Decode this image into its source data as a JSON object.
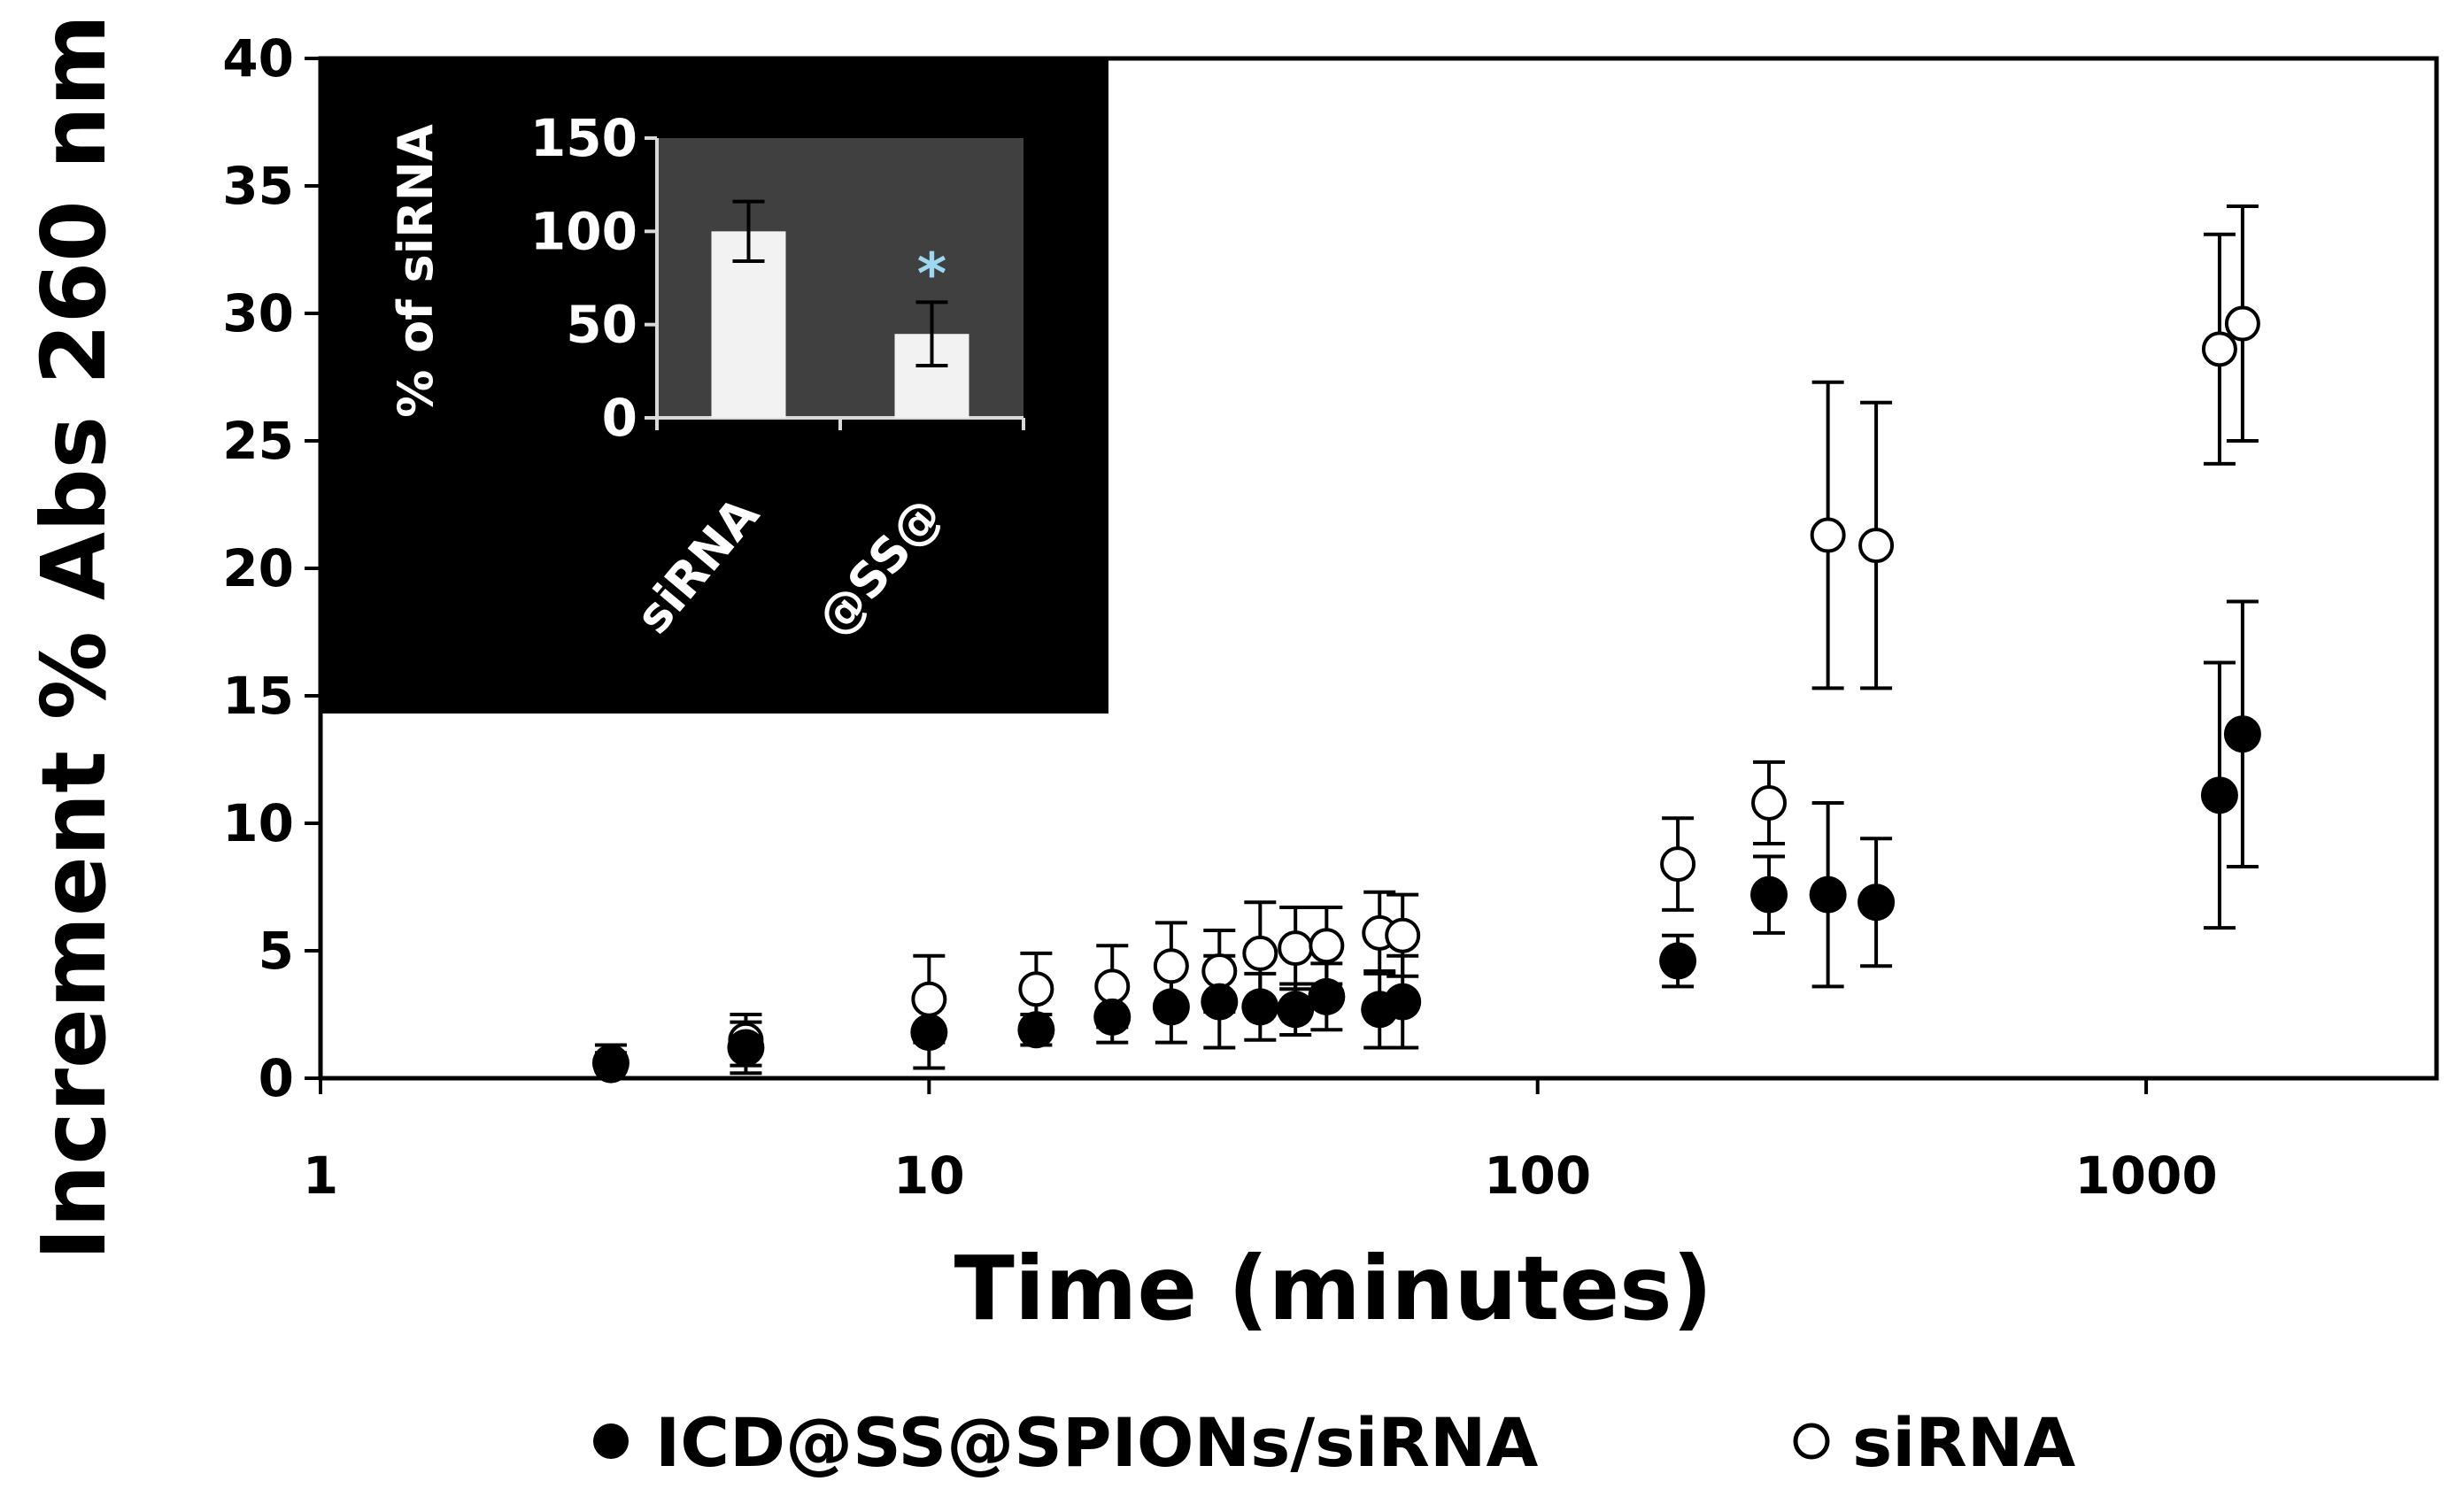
{
  "chart_data": [
    {
      "type": "scatter",
      "title": "",
      "xlabel": "Time (minutes)",
      "ylabel": "Increment % Abs 260 nm",
      "xscale": "log",
      "xlim": [
        1,
        3000
      ],
      "ylim": [
        0,
        40
      ],
      "xticks": [
        1,
        10,
        100,
        1000
      ],
      "xtick_labels": [
        "1",
        "10",
        "100",
        "1000"
      ],
      "yticks": [
        0,
        5,
        10,
        15,
        20,
        25,
        30,
        35,
        40
      ],
      "ytick_labels": [
        "0",
        "5",
        "10",
        "15",
        "20",
        "25",
        "30",
        "35",
        "40"
      ],
      "grid": false,
      "legend_position": "bottom",
      "series": [
        {
          "name": "ICD@SS@SPIONs/siRNA",
          "marker": "filled-circle",
          "color": "#000000",
          "points": [
            {
              "x": 3,
              "y": 0.6,
              "err": 0.7
            },
            {
              "x": 5,
              "y": 1.2,
              "err": 1.0
            },
            {
              "x": 10,
              "y": 1.8,
              "err": 1.4
            },
            {
              "x": 15,
              "y": 1.9,
              "err": 0.6
            },
            {
              "x": 20,
              "y": 2.4,
              "err": 1.0
            },
            {
              "x": 25,
              "y": 2.8,
              "err": 1.4
            },
            {
              "x": 30,
              "y": 3.0,
              "err": 1.8
            },
            {
              "x": 35,
              "y": 2.8,
              "err": 1.3
            },
            {
              "x": 40,
              "y": 2.7,
              "err": 1.0
            },
            {
              "x": 45,
              "y": 3.2,
              "err": 1.3
            },
            {
              "x": 55,
              "y": 2.7,
              "err": 1.5
            },
            {
              "x": 60,
              "y": 3.0,
              "err": 1.8
            },
            {
              "x": 170,
              "y": 4.6,
              "err": 1.0
            },
            {
              "x": 240,
              "y": 7.2,
              "err": 1.5
            },
            {
              "x": 300,
              "y": 7.2,
              "err": 3.6
            },
            {
              "x": 360,
              "y": 6.9,
              "err": 2.5
            },
            {
              "x": 1320,
              "y": 11.1,
              "err": 5.2
            },
            {
              "x": 1440,
              "y": 13.5,
              "err": 5.2
            }
          ]
        },
        {
          "name": "siRNA",
          "marker": "open-circle",
          "color": "#000000",
          "points": [
            {
              "x": 3,
              "y": 0.5,
              "err": 0.5
            },
            {
              "x": 5,
              "y": 1.5,
              "err": 1.0
            },
            {
              "x": 10,
              "y": 3.1,
              "err": 1.7
            },
            {
              "x": 15,
              "y": 3.5,
              "err": 1.4
            },
            {
              "x": 20,
              "y": 3.6,
              "err": 1.6
            },
            {
              "x": 25,
              "y": 4.4,
              "err": 1.7
            },
            {
              "x": 30,
              "y": 4.2,
              "err": 1.6
            },
            {
              "x": 35,
              "y": 4.9,
              "err": 2.0
            },
            {
              "x": 40,
              "y": 5.1,
              "err": 1.6
            },
            {
              "x": 45,
              "y": 5.2,
              "err": 1.5
            },
            {
              "x": 55,
              "y": 5.7,
              "err": 1.6
            },
            {
              "x": 60,
              "y": 5.6,
              "err": 1.6
            },
            {
              "x": 170,
              "y": 8.4,
              "err": 1.8
            },
            {
              "x": 240,
              "y": 10.8,
              "err": 1.6
            },
            {
              "x": 300,
              "y": 21.3,
              "err": 6.0
            },
            {
              "x": 360,
              "y": 20.9,
              "err": 5.6
            },
            {
              "x": 1320,
              "y": 28.6,
              "err": 4.5
            },
            {
              "x": 1440,
              "y": 29.6,
              "err": 4.6
            }
          ]
        }
      ]
    },
    {
      "type": "bar",
      "title": "",
      "xlabel": "",
      "ylabel": "% of siRNA",
      "categories": [
        "siRNA",
        "@SS@"
      ],
      "values": [
        100,
        45
      ],
      "errors": [
        16,
        17
      ],
      "ylim": [
        0,
        150
      ],
      "yticks": [
        0,
        50,
        100,
        150
      ],
      "ytick_labels": [
        "0",
        "50",
        "100",
        "150"
      ],
      "annotations": [
        {
          "category": "@SS@",
          "text": "*"
        }
      ],
      "background": "#333333",
      "plot_background": "#404040",
      "bar_color": "#f2f2f2",
      "annotation_color": "#9dd8f0"
    }
  ]
}
